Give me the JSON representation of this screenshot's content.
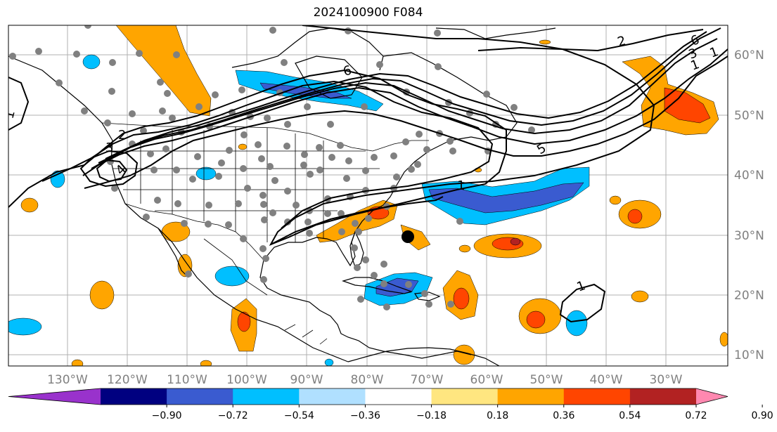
{
  "title": "2024100900 F084",
  "lon_labels": [
    "130°W",
    "120°W",
    "110°W",
    "100°W",
    "90°W",
    "80°W",
    "70°W",
    "60°W",
    "50°W",
    "40°W",
    "30°W"
  ],
  "lat_labels": [
    "60°N",
    "50°N",
    "40°N",
    "30°N",
    "20°N",
    "10°N"
  ],
  "colorbar": {
    "colors": [
      "#9932cc",
      "#000080",
      "#3a5bd0",
      "#00bfff",
      "#b0e0ff",
      "#ffffff",
      "#ffe680",
      "#ffa500",
      "#ff4500",
      "#b22222",
      "#ff88b0"
    ],
    "labels": [
      "−0.90",
      "−0.72",
      "−0.54",
      "−0.36",
      "−0.18",
      "0.18",
      "0.36",
      "0.54",
      "0.72",
      "0.90"
    ]
  },
  "contour_labels": [
    "1",
    "1",
    "1",
    "1",
    "2",
    "2",
    "3",
    "3",
    "4",
    "5",
    "6",
    "6",
    "1"
  ],
  "palette": {
    "land": "#ffffff",
    "grid": "#b0b0b0",
    "contour": "#000000",
    "station": "#808080",
    "storm": "#000000"
  }
}
